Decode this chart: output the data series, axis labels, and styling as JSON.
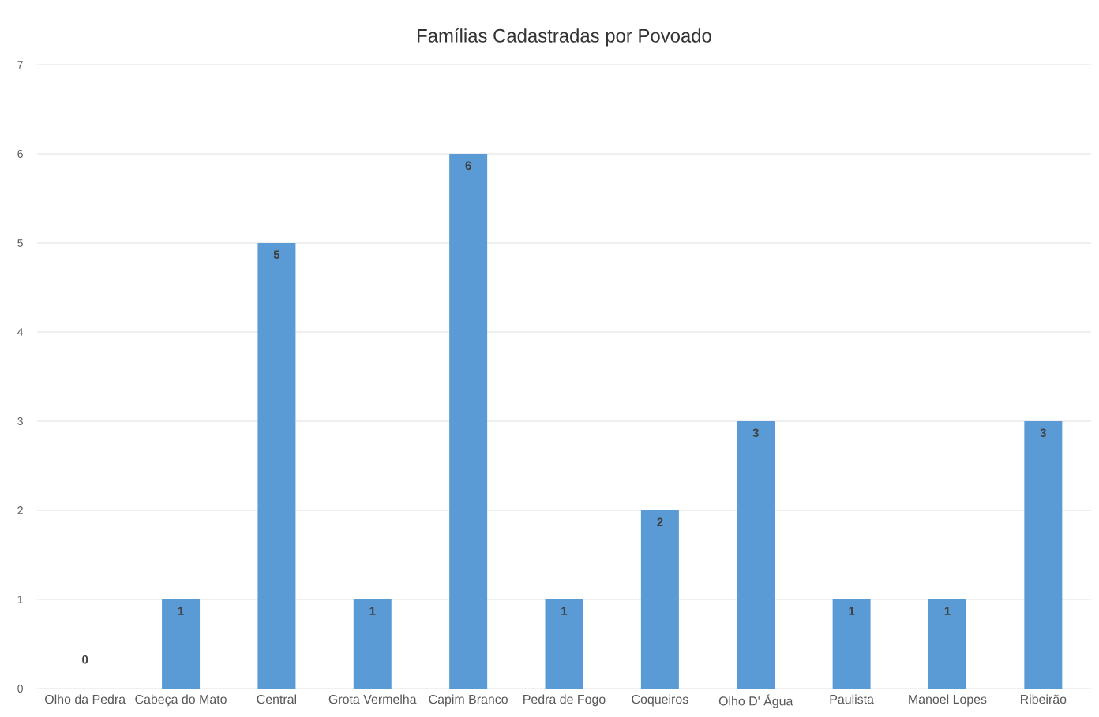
{
  "chart_data": {
    "type": "bar",
    "title": "Famílias Cadastradas por Povoado",
    "categories": [
      "Olho da Pedra",
      "Cabeça do Mato",
      "Central",
      "Grota Vermelha",
      "Capim Branco",
      "Pedra de Fogo",
      "Coqueiros",
      "Olho D' Água",
      "Paulista",
      "Manoel Lopes",
      "Ribeirão"
    ],
    "values": [
      0,
      1,
      5,
      1,
      6,
      1,
      2,
      3,
      1,
      1,
      3
    ],
    "color": "#5b9bd5",
    "ylim": [
      0,
      7
    ],
    "yticks": [
      0,
      1,
      2,
      3,
      4,
      5,
      6,
      7
    ],
    "grid": "y",
    "data_labels": true
  }
}
